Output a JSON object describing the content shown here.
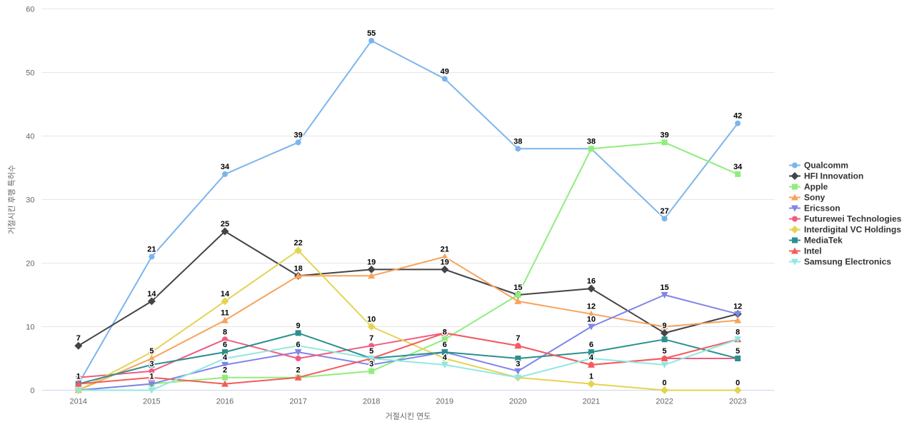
{
  "chart_data": {
    "type": "line",
    "title": "",
    "xlabel": "거절시킨 연도",
    "ylabel": "거절시킨 후행 특허수",
    "categories": [
      "2014",
      "2015",
      "2016",
      "2017",
      "2018",
      "2019",
      "2020",
      "2021",
      "2022",
      "2023"
    ],
    "ylim": [
      0,
      60
    ],
    "yticks": [
      "0",
      "10",
      "20",
      "30",
      "40",
      "50",
      "60"
    ],
    "grid": true,
    "legend_position": "right",
    "colors": {
      "grid": "#e6e6e6",
      "axis_line": "#ccd6eb",
      "tick_text": "#666666",
      "legend_text": "#333333",
      "data_label": "#000000"
    },
    "series": [
      {
        "name": "Qualcomm",
        "slug": "qualcomm",
        "color": "#7cb5ec",
        "marker": "circle",
        "values": [
          1,
          21,
          34,
          39,
          55,
          49,
          38,
          38,
          27,
          42
        ],
        "labels": [
          "1",
          "21",
          "34",
          "39",
          "55",
          "49",
          "38",
          "38",
          "27",
          "42"
        ]
      },
      {
        "name": "HFI Innovation",
        "slug": "hfi-innovation",
        "color": "#434348",
        "marker": "diamond",
        "values": [
          7,
          14,
          25,
          18,
          19,
          19,
          15,
          16,
          9,
          12
        ],
        "labels": [
          "7",
          "14",
          "25",
          "18",
          "19",
          "19",
          "15",
          "16",
          "9",
          "12"
        ]
      },
      {
        "name": "Apple",
        "slug": "apple",
        "color": "#90ed7d",
        "marker": "square",
        "values": [
          0,
          1,
          2,
          2,
          3,
          8,
          15,
          38,
          39,
          34
        ],
        "labels": [
          null,
          "1",
          "2",
          "2",
          "3",
          "8",
          null,
          null,
          "39",
          "34"
        ]
      },
      {
        "name": "Sony",
        "slug": "sony",
        "color": "#f7a35c",
        "marker": "triangle",
        "values": [
          0,
          5,
          11,
          18,
          18,
          21,
          14,
          12,
          10,
          11
        ],
        "labels": [
          null,
          "5",
          "11",
          null,
          null,
          "21",
          null,
          "12",
          null,
          null
        ]
      },
      {
        "name": "Ericsson",
        "slug": "ericsson",
        "color": "#8085e9",
        "marker": "triangle-down",
        "values": [
          0,
          1,
          4,
          6,
          4,
          6,
          3,
          10,
          15,
          12
        ],
        "labels": [
          null,
          null,
          "4",
          "6",
          null,
          "6",
          "3",
          "10",
          "15",
          null
        ]
      },
      {
        "name": "Futurewei Technologies",
        "slug": "futurewei-technologies",
        "color": "#f15c80",
        "marker": "circle",
        "values": [
          2,
          3,
          8,
          5,
          7,
          9,
          7,
          4,
          5,
          5
        ],
        "labels": [
          null,
          "3",
          "8",
          null,
          "7",
          null,
          "7",
          "4",
          "5",
          "5"
        ]
      },
      {
        "name": "Interdigital VC Holdings",
        "slug": "interdigital-vc-holdings",
        "color": "#e4d354",
        "marker": "diamond",
        "values": [
          0,
          6,
          14,
          22,
          10,
          5,
          2,
          1,
          0,
          0
        ],
        "labels": [
          null,
          null,
          "14",
          "22",
          "10",
          null,
          null,
          "1",
          "0",
          "0"
        ]
      },
      {
        "name": "MediaTek",
        "slug": "mediatek",
        "color": "#2b908f",
        "marker": "square",
        "values": [
          1,
          4,
          6,
          9,
          5,
          6,
          5,
          6,
          8,
          5
        ],
        "labels": [
          null,
          null,
          "6",
          "9",
          "5",
          null,
          null,
          "6",
          null,
          null
        ]
      },
      {
        "name": "Intel",
        "slug": "intel",
        "color": "#f45b5b",
        "marker": "triangle",
        "values": [
          1,
          2,
          1,
          2,
          5,
          9,
          7,
          4,
          5,
          8
        ],
        "labels": [
          null,
          null,
          null,
          null,
          null,
          null,
          null,
          null,
          null,
          "8"
        ]
      },
      {
        "name": "Samsung Electronics",
        "slug": "samsung-electronics",
        "color": "#91e8e1",
        "marker": "triangle-down",
        "values": [
          0,
          0,
          5,
          7,
          5,
          4,
          2,
          5,
          4,
          8
        ],
        "labels": [
          null,
          null,
          null,
          null,
          null,
          "4",
          null,
          null,
          null,
          null
        ]
      }
    ]
  }
}
